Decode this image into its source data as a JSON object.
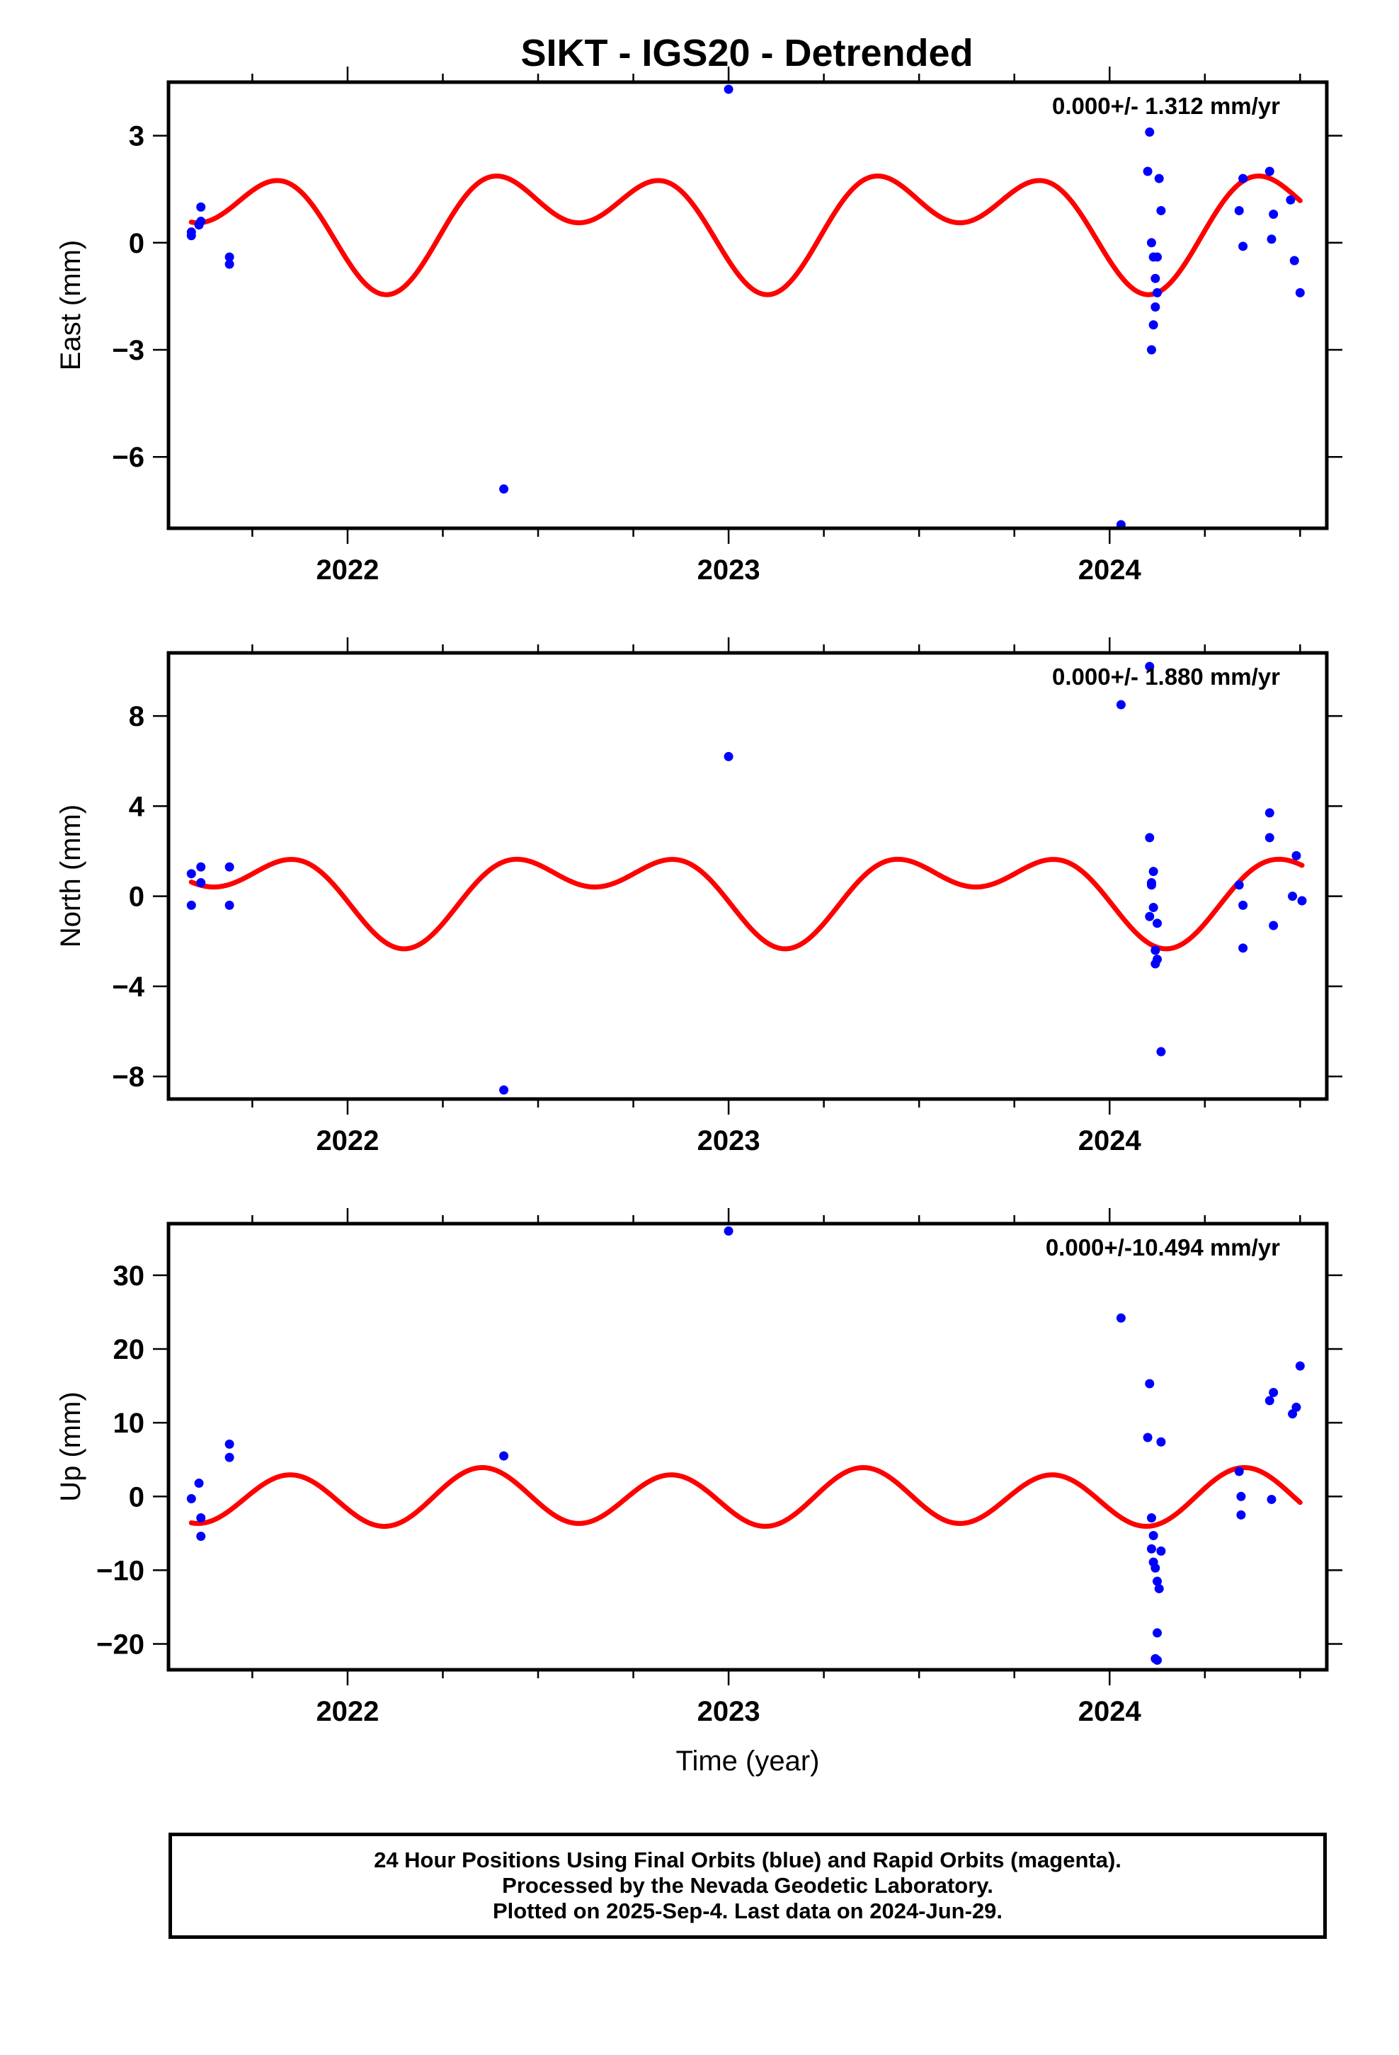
{
  "title": "SIKT - IGS20 - Detrended",
  "footer": {
    "line1": "24 Hour Positions Using Final Orbits (blue) and Rapid Orbits (magenta).",
    "line2": "Processed by the Nevada Geodetic Laboratory.",
    "line3": "Plotted on 2025-Sep-4. Last data on 2024-Jun-29."
  },
  "colors": {
    "final_orbits": "#0000ff",
    "model_fit": "#ff0000",
    "axis": "#000000"
  },
  "chart_data": [
    {
      "type": "scatter",
      "component": "East",
      "ylabel": "East (mm)",
      "xlabel": "",
      "xlim": [
        2021.53,
        2024.57
      ],
      "ylim": [
        -8.0,
        4.5
      ],
      "xticks": [
        2022,
        2023,
        2024
      ],
      "yticks": [
        3,
        0,
        -3,
        -6
      ],
      "ytick_labels": [
        "3",
        "0",
        "−3",
        "−6"
      ],
      "rate_text": "0.000+/- 1.312 mm/yr",
      "grid": false,
      "model": {
        "offset": 0.62,
        "annual_cos": -0.84,
        "annual_sin": -0.56,
        "semi_cos": -0.28,
        "semi_sin": -1.03,
        "phase_ref": 2022.0
      },
      "series": [
        {
          "points": [
            [
              2021.59,
              0.3
            ],
            [
              2021.59,
              0.2
            ],
            [
              2021.615,
              1.0
            ],
            [
              2021.615,
              0.6
            ],
            [
              2021.61,
              0.5
            ],
            [
              2021.69,
              -0.6
            ],
            [
              2021.69,
              -0.4
            ],
            [
              2022.41,
              -6.9
            ],
            [
              2023.0,
              4.3
            ],
            [
              2024.03,
              -7.9
            ],
            [
              2024.105,
              3.1
            ],
            [
              2024.1,
              2.0
            ],
            [
              2024.13,
              1.8
            ],
            [
              2024.135,
              0.9
            ],
            [
              2024.11,
              0.0
            ],
            [
              2024.115,
              -0.4
            ],
            [
              2024.125,
              -0.4
            ],
            [
              2024.12,
              -1.0
            ],
            [
              2024.125,
              -1.4
            ],
            [
              2024.12,
              -1.8
            ],
            [
              2024.115,
              -2.3
            ],
            [
              2024.11,
              -3.0
            ],
            [
              2024.34,
              0.9
            ],
            [
              2024.35,
              1.8
            ],
            [
              2024.35,
              -0.1
            ],
            [
              2024.42,
              2.0
            ],
            [
              2024.425,
              0.1
            ],
            [
              2024.43,
              0.8
            ],
            [
              2024.475,
              1.2
            ],
            [
              2024.485,
              -0.5
            ],
            [
              2024.5,
              -1.4
            ]
          ]
        }
      ]
    },
    {
      "type": "scatter",
      "component": "North",
      "ylabel": "North (mm)",
      "xlabel": "",
      "xlim": [
        2021.53,
        2024.57
      ],
      "ylim": [
        -9.0,
        10.8
      ],
      "xticks": [
        2022,
        2023,
        2024
      ],
      "yticks": [
        8,
        4,
        0,
        -4,
        -8
      ],
      "ytick_labels": [
        "8",
        "4",
        "0",
        "−4",
        "−8"
      ],
      "rate_text": "0.000+/- 1.880 mm/yr",
      "grid": false,
      "model": {
        "offset": 0.24,
        "annual_cos": -0.82,
        "annual_sin": -1.1,
        "semi_cos": 0.35,
        "semi_sin": -1.15,
        "phase_ref": 2022.0
      },
      "series": [
        {
          "points": [
            [
              2021.59,
              1.0
            ],
            [
              2021.59,
              -0.4
            ],
            [
              2021.615,
              1.3
            ],
            [
              2021.615,
              0.6
            ],
            [
              2021.69,
              1.3
            ],
            [
              2021.69,
              -0.4
            ],
            [
              2022.41,
              -8.6
            ],
            [
              2023.0,
              6.2
            ],
            [
              2024.03,
              8.5
            ],
            [
              2024.105,
              10.2
            ],
            [
              2024.105,
              2.6
            ],
            [
              2024.115,
              1.1
            ],
            [
              2024.11,
              0.5
            ],
            [
              2024.11,
              0.6
            ],
            [
              2024.115,
              -0.5
            ],
            [
              2024.105,
              -0.9
            ],
            [
              2024.125,
              -1.2
            ],
            [
              2024.12,
              -2.4
            ],
            [
              2024.125,
              -2.8
            ],
            [
              2024.12,
              -3.0
            ],
            [
              2024.135,
              -6.9
            ],
            [
              2024.34,
              0.5
            ],
            [
              2024.35,
              -0.4
            ],
            [
              2024.35,
              -2.3
            ],
            [
              2024.42,
              3.7
            ],
            [
              2024.42,
              2.6
            ],
            [
              2024.43,
              -1.3
            ],
            [
              2024.48,
              0.0
            ],
            [
              2024.49,
              1.8
            ],
            [
              2024.505,
              -0.2
            ]
          ]
        }
      ]
    },
    {
      "type": "scatter",
      "component": "Up",
      "ylabel": "Up (mm)",
      "xlabel": "Time (year)",
      "xlim": [
        2021.53,
        2024.57
      ],
      "ylim": [
        -23.5,
        37.0
      ],
      "xticks": [
        2022,
        2023,
        2024
      ],
      "yticks": [
        30,
        20,
        10,
        0,
        -10,
        -20
      ],
      "ytick_labels": [
        "30",
        "20",
        "10",
        "0",
        "−10",
        "−20"
      ],
      "rate_text": "0.000+/-10.494 mm/yr",
      "grid": false,
      "model": {
        "offset": -0.21,
        "annual_cos": -0.45,
        "annual_sin": 0.28,
        "semi_cos": -1.05,
        "semi_sin": -3.48,
        "phase_ref": 2022.0
      },
      "series": [
        {
          "points": [
            [
              2021.59,
              -0.3
            ],
            [
              2021.61,
              1.8
            ],
            [
              2021.615,
              -2.9
            ],
            [
              2021.615,
              -5.4
            ],
            [
              2021.69,
              7.1
            ],
            [
              2021.69,
              5.3
            ],
            [
              2022.41,
              5.5
            ],
            [
              2023.0,
              36.0
            ],
            [
              2024.03,
              24.2
            ],
            [
              2024.105,
              15.3
            ],
            [
              2024.1,
              8.0
            ],
            [
              2024.135,
              7.4
            ],
            [
              2024.11,
              -2.9
            ],
            [
              2024.115,
              -5.3
            ],
            [
              2024.11,
              -7.1
            ],
            [
              2024.135,
              -7.4
            ],
            [
              2024.115,
              -8.9
            ],
            [
              2024.12,
              -9.7
            ],
            [
              2024.125,
              -11.5
            ],
            [
              2024.13,
              -12.5
            ],
            [
              2024.125,
              -18.5
            ],
            [
              2024.12,
              -22.0
            ],
            [
              2024.125,
              -22.2
            ],
            [
              2024.34,
              3.4
            ],
            [
              2024.345,
              0.0
            ],
            [
              2024.345,
              -2.5
            ],
            [
              2024.42,
              13.0
            ],
            [
              2024.43,
              14.1
            ],
            [
              2024.425,
              -0.4
            ],
            [
              2024.48,
              11.2
            ],
            [
              2024.49,
              12.1
            ],
            [
              2024.5,
              17.7
            ]
          ]
        }
      ]
    }
  ]
}
